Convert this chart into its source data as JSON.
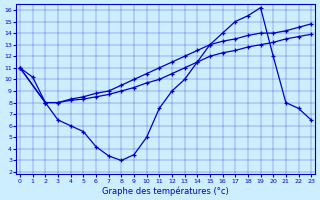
{
  "xlabel": "Graphe des températures (°c)",
  "xlim": [
    0,
    23
  ],
  "ylim": [
    2,
    16
  ],
  "xticks": [
    0,
    1,
    2,
    3,
    4,
    5,
    6,
    7,
    8,
    9,
    10,
    11,
    12,
    13,
    14,
    15,
    16,
    17,
    18,
    19,
    20,
    21,
    22,
    23
  ],
  "yticks": [
    2,
    3,
    4,
    5,
    6,
    7,
    8,
    9,
    10,
    11,
    12,
    13,
    14,
    15,
    16
  ],
  "bg_color": "#cceeff",
  "line_color": "#0000cc",
  "curve1_x": [
    0,
    1,
    2,
    3,
    4,
    5,
    6,
    7,
    8,
    9,
    10,
    11,
    12,
    13,
    14,
    15,
    16,
    17,
    18,
    19,
    20,
    21,
    22,
    23
  ],
  "curve1_y": [
    11.0,
    10.2,
    8.0,
    6.5,
    6.0,
    5.5,
    4.2,
    3.4,
    3.0,
    3.5,
    5.0,
    7.5,
    9.0,
    10.0,
    11.5,
    13.0,
    14.0,
    15.0,
    15.5,
    16.2,
    12.0,
    8.0,
    7.5,
    6.5
  ],
  "curve2_x": [
    0,
    2,
    3,
    4,
    5,
    6,
    7,
    8,
    9,
    10,
    11,
    12,
    13,
    14,
    15,
    16,
    17,
    18,
    19,
    20,
    21,
    22,
    23
  ],
  "curve2_y": [
    11.0,
    8.0,
    8.0,
    8.3,
    8.5,
    8.8,
    9.0,
    9.5,
    10.0,
    10.5,
    11.0,
    11.5,
    12.0,
    12.5,
    13.0,
    13.3,
    13.5,
    13.8,
    14.0,
    14.0,
    14.2,
    14.5,
    14.8
  ],
  "curve3_x": [
    0,
    2,
    3,
    4,
    5,
    6,
    7,
    8,
    9,
    10,
    11,
    12,
    13,
    14,
    15,
    16,
    17,
    18,
    19,
    20,
    21,
    22,
    23
  ],
  "curve3_y": [
    11.0,
    8.0,
    8.0,
    8.2,
    8.3,
    8.5,
    8.7,
    9.0,
    9.3,
    9.7,
    10.0,
    10.5,
    11.0,
    11.5,
    12.0,
    12.3,
    12.5,
    12.8,
    13.0,
    13.2,
    13.5,
    13.7,
    13.9
  ]
}
